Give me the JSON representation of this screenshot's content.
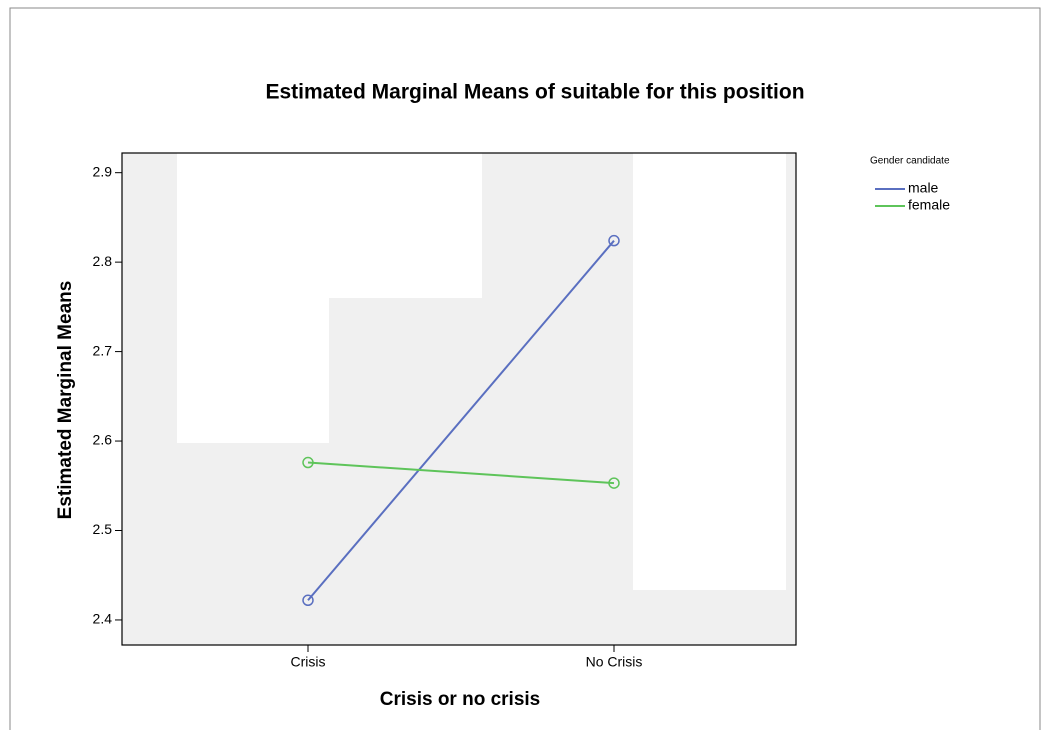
{
  "chart_data": {
    "type": "line",
    "title": "Estimated Marginal Means of suitable for this position",
    "x_label": "Crisis or no crisis",
    "y_label": "Estimated Marginal Means",
    "legend_title": "Gender candidate",
    "categories": [
      "Crisis",
      "No Crisis"
    ],
    "series": [
      {
        "name": "male",
        "color": "#5a6fc0",
        "values": [
          2.422,
          2.824
        ]
      },
      {
        "name": "female",
        "color": "#5ec45a",
        "values": [
          2.576,
          2.553
        ]
      }
    ],
    "ylim": [
      2.372,
      2.922
    ],
    "yticks": [
      {
        "value": 2.4,
        "label": "2.4"
      },
      {
        "value": 2.5,
        "label": "2.5"
      },
      {
        "value": 2.6,
        "label": "2.6"
      },
      {
        "value": 2.7,
        "label": "2.7"
      },
      {
        "value": 2.8,
        "label": "2.8"
      },
      {
        "value": 2.9,
        "label": "2.9"
      }
    ],
    "legend": "right"
  }
}
